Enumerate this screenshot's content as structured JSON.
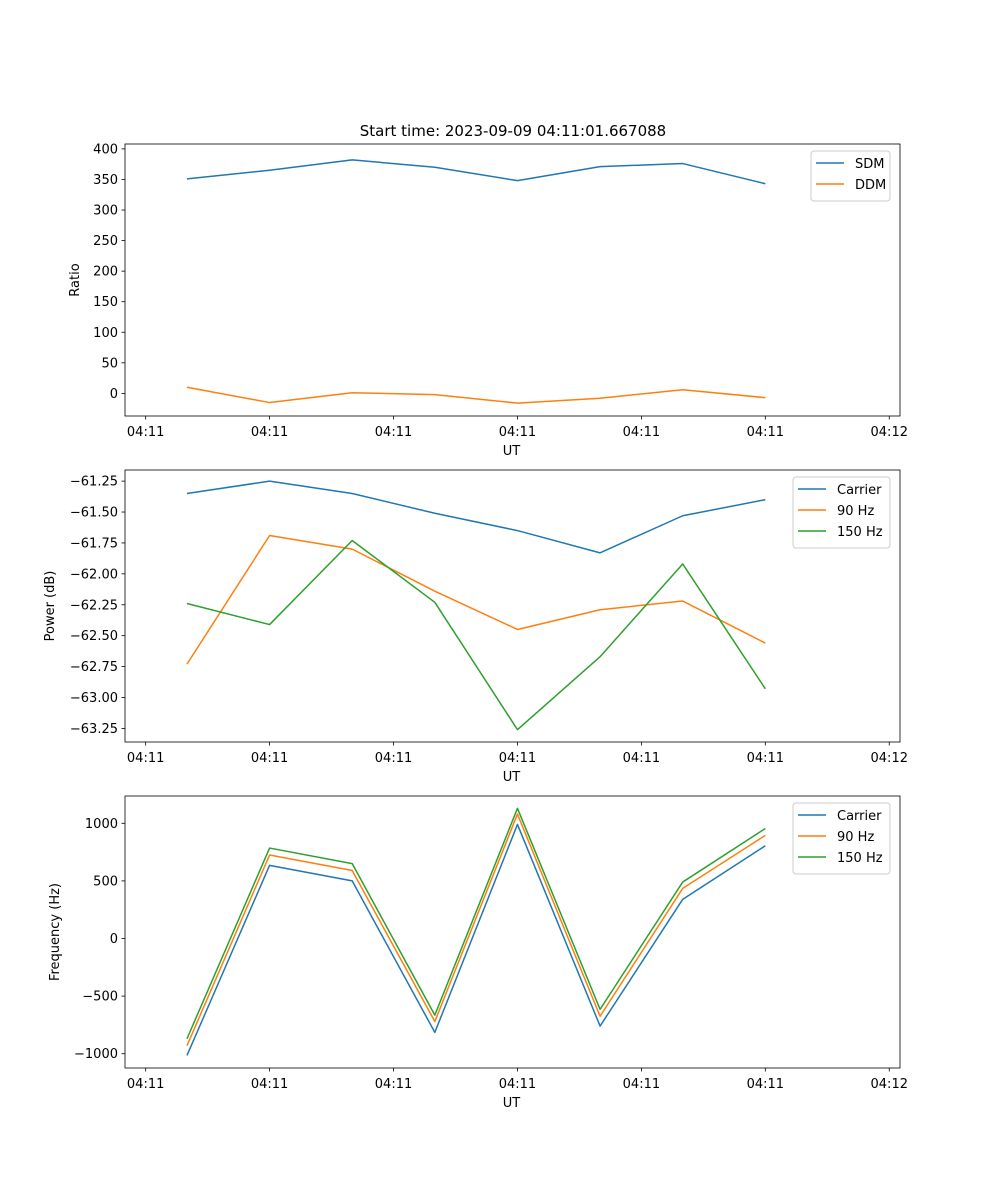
{
  "figure_title": "Start time: 2023-09-09 04:11:01.667088",
  "chart_data": [
    {
      "type": "line",
      "xlabel": "UT",
      "ylabel": "Ratio",
      "ylim": [
        -37,
        408
      ],
      "yticks": [
        0,
        50,
        100,
        150,
        200,
        250,
        300,
        350,
        400
      ],
      "xlim": [
        -0.75,
        8.63
      ],
      "xticks": [
        {
          "x": -0.5,
          "label": "04:11"
        },
        {
          "x": 1.0,
          "label": "04:11"
        },
        {
          "x": 2.5,
          "label": "04:11"
        },
        {
          "x": 4.0,
          "label": "04:11"
        },
        {
          "x": 5.5,
          "label": "04:11"
        },
        {
          "x": 7.0,
          "label": "04:11"
        },
        {
          "x": 8.5,
          "label": "04:12"
        }
      ],
      "x": [
        0,
        1,
        2,
        3,
        4,
        5,
        6,
        7
      ],
      "legend_loc": "upper right",
      "series": [
        {
          "name": "SDM",
          "color": "#1f77b4",
          "values": [
            351,
            365,
            382,
            370,
            348,
            371,
            376,
            343
          ]
        },
        {
          "name": "DDM",
          "color": "#ff7f0e",
          "values": [
            10,
            -15,
            1,
            -2,
            -16,
            -8,
            6,
            -7
          ]
        }
      ]
    },
    {
      "type": "line",
      "xlabel": "UT",
      "ylabel": "Power (dB)",
      "ylim": [
        -63.36,
        -61.16
      ],
      "yticks": [
        -63.25,
        -63.0,
        -62.75,
        -62.5,
        -62.25,
        -62.0,
        -61.75,
        -61.5,
        -61.25
      ],
      "ytick_labels": [
        "−63.25",
        "−63.00",
        "−62.75",
        "−62.50",
        "−62.25",
        "−62.00",
        "−61.75",
        "−61.50",
        "−61.25"
      ],
      "xlim": [
        -0.75,
        8.63
      ],
      "xticks": [
        {
          "x": -0.5,
          "label": "04:11"
        },
        {
          "x": 1.0,
          "label": "04:11"
        },
        {
          "x": 2.5,
          "label": "04:11"
        },
        {
          "x": 4.0,
          "label": "04:11"
        },
        {
          "x": 5.5,
          "label": "04:11"
        },
        {
          "x": 7.0,
          "label": "04:11"
        },
        {
          "x": 8.5,
          "label": "04:12"
        }
      ],
      "x": [
        0,
        1,
        2,
        3,
        4,
        5,
        6,
        7
      ],
      "legend_loc": "upper right",
      "series": [
        {
          "name": "Carrier",
          "color": "#1f77b4",
          "values": [
            -61.35,
            -61.25,
            -61.35,
            -61.51,
            -61.65,
            -61.83,
            -61.53,
            -61.4
          ]
        },
        {
          "name": "90 Hz",
          "color": "#ff7f0e",
          "values": [
            -62.73,
            -61.69,
            -61.8,
            -62.14,
            -62.45,
            -62.29,
            -62.22,
            -62.56
          ]
        },
        {
          "name": "150 Hz",
          "color": "#2ca02c",
          "values": [
            -62.24,
            -62.41,
            -61.73,
            -62.23,
            -63.26,
            -62.67,
            -61.92,
            -62.93
          ]
        }
      ]
    },
    {
      "type": "line",
      "xlabel": "UT",
      "ylabel": "Frequency (Hz)",
      "ylim": [
        -1124,
        1237
      ],
      "yticks": [
        -1000,
        -500,
        0,
        500,
        1000
      ],
      "ytick_labels": [
        "−1000",
        "−500",
        "0",
        "500",
        "1000"
      ],
      "xlim": [
        -0.75,
        8.63
      ],
      "xticks": [
        {
          "x": -0.5,
          "label": "04:11"
        },
        {
          "x": 1.0,
          "label": "04:11"
        },
        {
          "x": 2.5,
          "label": "04:11"
        },
        {
          "x": 4.0,
          "label": "04:11"
        },
        {
          "x": 5.5,
          "label": "04:11"
        },
        {
          "x": 7.0,
          "label": "04:11"
        },
        {
          "x": 8.5,
          "label": "04:12"
        }
      ],
      "x": [
        0,
        1,
        2,
        3,
        4,
        5,
        6,
        7
      ],
      "legend_loc": "upper right",
      "series": [
        {
          "name": "Carrier",
          "color": "#1f77b4",
          "values": [
            -1015,
            635,
            500,
            -815,
            990,
            -760,
            340,
            805
          ]
        },
        {
          "name": "90 Hz",
          "color": "#ff7f0e",
          "values": [
            -930,
            725,
            590,
            -720,
            1080,
            -675,
            435,
            895
          ]
        },
        {
          "name": "150 Hz",
          "color": "#2ca02c",
          "values": [
            -870,
            785,
            650,
            -665,
            1130,
            -615,
            490,
            955
          ]
        }
      ]
    }
  ]
}
